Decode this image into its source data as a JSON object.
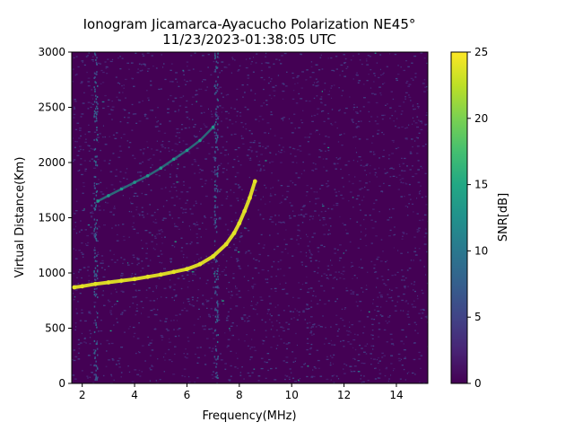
{
  "chart_data": {
    "type": "heatmap",
    "title": "Ionogram Jicamarca-Ayacucho Polarization NE45°",
    "subtitle": "11/23/2023-01:38:05 UTC",
    "xlabel": "Frequency(MHz)",
    "ylabel": "Virtual Distance(Km)",
    "xlim": [
      1.6,
      15.2
    ],
    "ylim": [
      0,
      3000
    ],
    "xticks": [
      2,
      4,
      6,
      8,
      10,
      12,
      14
    ],
    "yticks": [
      0,
      500,
      1000,
      1500,
      2000,
      2500,
      3000
    ],
    "colorbar": {
      "label": "SNR[dB]",
      "colormap": "viridis",
      "range": [
        0,
        25
      ],
      "ticks": [
        0,
        5,
        10,
        15,
        20,
        25
      ]
    },
    "traces": [
      {
        "description": "primary echo trace (high SNR)",
        "snr_db": 24,
        "points": [
          [
            1.7,
            870
          ],
          [
            2.0,
            880
          ],
          [
            2.5,
            900
          ],
          [
            3.0,
            915
          ],
          [
            3.5,
            930
          ],
          [
            4.0,
            945
          ],
          [
            4.5,
            965
          ],
          [
            5.0,
            985
          ],
          [
            5.5,
            1010
          ],
          [
            6.0,
            1035
          ],
          [
            6.5,
            1080
          ],
          [
            7.0,
            1150
          ],
          [
            7.5,
            1260
          ],
          [
            7.8,
            1360
          ],
          [
            8.0,
            1450
          ],
          [
            8.2,
            1560
          ],
          [
            8.4,
            1680
          ],
          [
            8.6,
            1830
          ]
        ]
      },
      {
        "description": "secondary echo trace (medium SNR)",
        "snr_db": 13,
        "points": [
          [
            2.6,
            1650
          ],
          [
            3.0,
            1700
          ],
          [
            3.5,
            1760
          ],
          [
            4.0,
            1820
          ],
          [
            4.5,
            1880
          ],
          [
            5.0,
            1950
          ],
          [
            5.5,
            2030
          ],
          [
            6.0,
            2110
          ],
          [
            6.5,
            2200
          ],
          [
            7.0,
            2320
          ]
        ]
      }
    ],
    "vertical_interference_bands_mhz": [
      2.5,
      7.1
    ]
  }
}
